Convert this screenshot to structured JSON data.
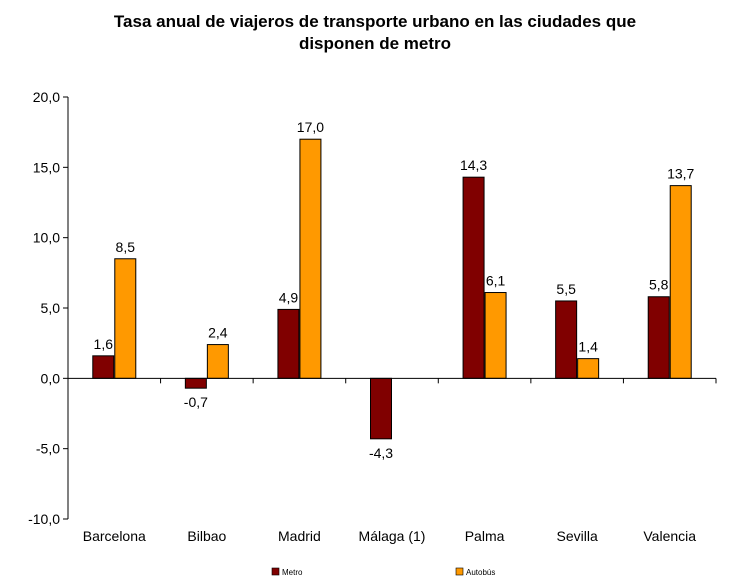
{
  "chart_data": {
    "type": "bar",
    "title_lines": [
      "Tasa anual de viajeros de transporte urbano en las ciudades que",
      "disponen de metro"
    ],
    "categories": [
      "Barcelona",
      "Bilbao",
      "Madrid",
      "Málaga (1)",
      "Palma",
      "Sevilla",
      "Valencia"
    ],
    "series": [
      {
        "name": "Metro",
        "color": "#800000",
        "values": [
          1.6,
          -0.7,
          4.9,
          -4.3,
          14.3,
          5.5,
          5.8
        ],
        "labels": [
          "1,6",
          "-0,7",
          "4,9",
          "-4,3",
          "14,3",
          "5,5",
          "5,8"
        ]
      },
      {
        "name": "Autobús",
        "color": "#FF9900",
        "values": [
          8.5,
          2.4,
          17.0,
          null,
          6.1,
          1.4,
          13.7
        ],
        "labels": [
          "8,5",
          "2,4",
          "17,0",
          null,
          "6,1",
          "1,4",
          "13,7"
        ]
      }
    ],
    "ylim": [
      -10,
      20
    ],
    "yticks": [
      20,
      15,
      10,
      5,
      0,
      -5,
      -10
    ],
    "ytick_labels": [
      "20,0",
      "15,0",
      "10,0",
      "5,0",
      "0,0",
      "-5,0",
      "-10,0"
    ],
    "xlabel": "",
    "ylabel": "",
    "legend_position": "bottom"
  }
}
